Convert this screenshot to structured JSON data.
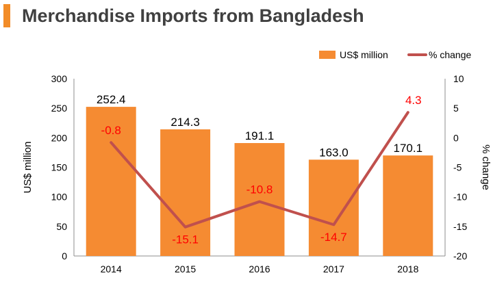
{
  "title": "Merchandise Imports from Bangladesh",
  "colors": {
    "accent": "#f28c28",
    "bar": "#f58b32",
    "line": "#c0504d",
    "line_label": "#ff0000"
  },
  "chart_data": {
    "type": "bar",
    "categories": [
      "2014",
      "2015",
      "2016",
      "2017",
      "2018"
    ],
    "series": [
      {
        "name": "US$ million",
        "type": "bar",
        "axis": "left",
        "values": [
          252.4,
          214.3,
          191.1,
          163.0,
          170.1
        ],
        "labels": [
          "252.4",
          "214.3",
          "191.1",
          "163.0",
          "170.1"
        ]
      },
      {
        "name": "% change",
        "type": "line",
        "axis": "right",
        "values": [
          -0.8,
          -15.1,
          -10.8,
          -14.7,
          4.3
        ],
        "labels": [
          "-0.8",
          "-15.1",
          "-10.8",
          "-14.7",
          "4.3"
        ]
      }
    ],
    "ylabel": "US$ million",
    "y2label": "% change",
    "ylim": [
      0,
      300
    ],
    "y2lim": [
      -20,
      10
    ],
    "yticks": [
      "0",
      "50",
      "100",
      "150",
      "200",
      "250",
      "300"
    ],
    "y2ticks": [
      "-20",
      "-15",
      "-10",
      "-5",
      "0",
      "5",
      "10"
    ],
    "legend": "top-right",
    "grid": false
  }
}
